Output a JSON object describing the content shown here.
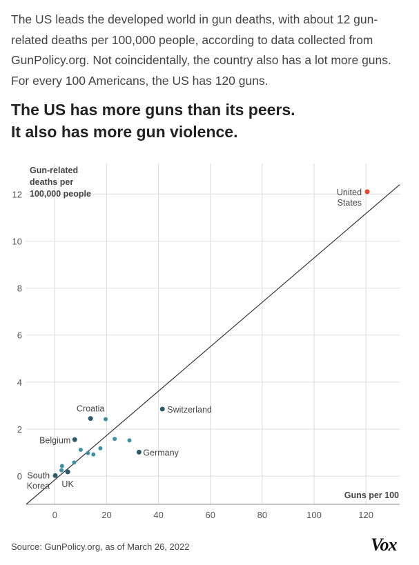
{
  "intro_text": "The US leads the developed world in gun deaths, with about 12 gun-related deaths per 100,000 people, according to data collected from GunPolicy.org. Not coincidentally, the country also has a lot more guns. For every 100 Americans, the US has 120 guns.",
  "headline": {
    "line1": "The US has more guns than its peers.",
    "line2": "It also has more gun violence."
  },
  "source": "Source: GunPolicy.org, as of March 26, 2022",
  "logo_text": "Vox",
  "colors": {
    "us": "#e8482a",
    "point": "#3d8fa6",
    "labeled_point": "#2c5b6b",
    "grid": "#dddddd",
    "trend": "#333333"
  },
  "chart_data": {
    "type": "scatter",
    "title": "The US has more guns than its peers. It also has more gun violence.",
    "xlabel": "Guns per 100",
    "ylabel_lines": [
      "Gun-related",
      "deaths per",
      "100,000 people"
    ],
    "xlim": [
      -11,
      133
    ],
    "ylim": [
      -1.2,
      13.3
    ],
    "xticks": [
      0,
      20,
      40,
      60,
      80,
      100,
      120
    ],
    "yticks": [
      0,
      2,
      4,
      6,
      8,
      10,
      12
    ],
    "trendline": {
      "from": [
        -11,
        -1.2
      ],
      "to": [
        133,
        12.4
      ]
    },
    "points": [
      {
        "x": 120.5,
        "y": 12.1,
        "label_lines": [
          "United",
          "States"
        ],
        "kind": "us"
      },
      {
        "x": 13.8,
        "y": 2.45,
        "label_lines": [
          "Croatia"
        ],
        "kind": "labeled"
      },
      {
        "x": 41.5,
        "y": 2.85,
        "label_lines": [
          "Switzerland"
        ],
        "kind": "labeled"
      },
      {
        "x": 7.7,
        "y": 1.55,
        "label_lines": [
          "Belgium"
        ],
        "kind": "labeled"
      },
      {
        "x": 32.5,
        "y": 1.02,
        "label_lines": [
          "Germany"
        ],
        "kind": "labeled"
      },
      {
        "x": 0.2,
        "y": 0.02,
        "label_lines": [
          "South",
          "Korea"
        ],
        "kind": "labeled"
      },
      {
        "x": 5.0,
        "y": 0.18,
        "label_lines": [
          "UK"
        ],
        "kind": "labeled"
      },
      {
        "x": 19.6,
        "y": 2.42,
        "label_lines": [],
        "kind": "plain"
      },
      {
        "x": 23.1,
        "y": 1.58,
        "label_lines": [],
        "kind": "plain"
      },
      {
        "x": 28.8,
        "y": 1.52,
        "label_lines": [],
        "kind": "plain"
      },
      {
        "x": 17.6,
        "y": 1.18,
        "label_lines": [],
        "kind": "plain"
      },
      {
        "x": 10.0,
        "y": 1.12,
        "label_lines": [],
        "kind": "plain"
      },
      {
        "x": 12.8,
        "y": 0.98,
        "label_lines": [],
        "kind": "plain"
      },
      {
        "x": 14.9,
        "y": 0.92,
        "label_lines": [],
        "kind": "plain"
      },
      {
        "x": 7.5,
        "y": 0.58,
        "label_lines": [],
        "kind": "plain"
      },
      {
        "x": 2.8,
        "y": 0.43,
        "label_lines": [],
        "kind": "plain"
      },
      {
        "x": 2.6,
        "y": 0.25,
        "label_lines": [],
        "kind": "plain"
      }
    ]
  }
}
